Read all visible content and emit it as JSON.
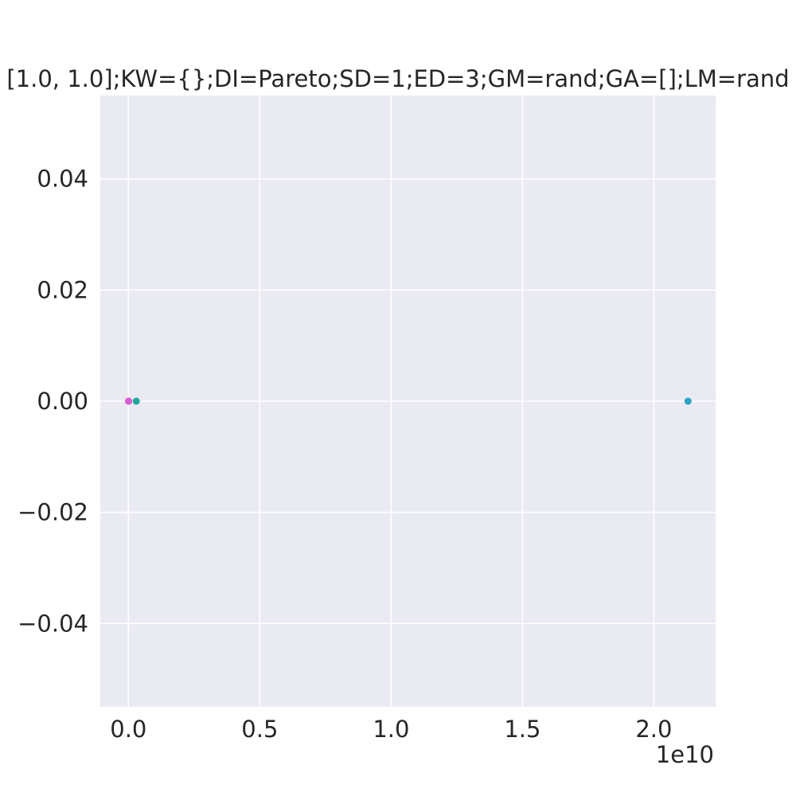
{
  "chart_data": {
    "type": "scatter",
    "title": "[1.0, 1.0];KW={};DI=Pareto;SD=1;ED=3;GM=rand;GA=[];LM=rand",
    "xlabel": "",
    "ylabel": "",
    "x_offset_label": "1e10",
    "x_tick_values": [
      0.0,
      0.5,
      1.0,
      1.5,
      2.0
    ],
    "x_tick_labels": [
      "0.0",
      "0.5",
      "1.0",
      "1.5",
      "2.0"
    ],
    "y_tick_values": [
      0.04,
      0.02,
      0.0,
      -0.02,
      -0.04
    ],
    "y_tick_labels": [
      "0.04",
      "0.02",
      "0.00",
      "−0.02",
      "−0.04"
    ],
    "xlim": [
      -0.107,
      2.235
    ],
    "ylim": [
      -0.055,
      0.055
    ],
    "grid": true,
    "background_color": "#eaeaf2",
    "points": [
      {
        "x": 0.0,
        "y": 0.0,
        "color": "#e377c2"
      },
      {
        "x": 0.001,
        "y": 0.0,
        "color": "#d45fd0"
      },
      {
        "x": 0.03,
        "y": 0.0,
        "color": "#1fa79a"
      },
      {
        "x": 2.13,
        "y": 0.0,
        "color": "#2ca3c6"
      }
    ]
  }
}
